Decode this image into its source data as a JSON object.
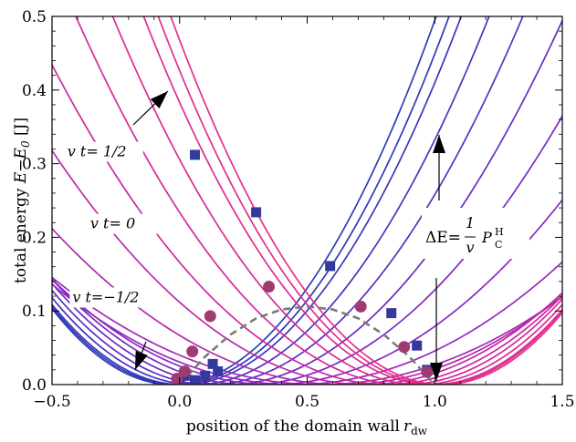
{
  "chart_data": {
    "type": "line",
    "xlabel": "position of the domain wall",
    "xlabel_sub": "dw",
    "xlabel_var": "r",
    "ylabel_main": "total energy ",
    "ylabel_expr": "E−E",
    "ylabel_sub": "0",
    "ylabel_unit": " [J]",
    "xlim": [
      -0.5,
      1.5
    ],
    "ylim": [
      0.0,
      0.5
    ],
    "x_ticks": [
      -0.5,
      0.0,
      0.5,
      1.0,
      1.5
    ],
    "x_tick_labels": [
      "−0.5",
      "0.0",
      "0.5",
      "1.0",
      "1.5"
    ],
    "y_ticks": [
      0.0,
      0.1,
      0.2,
      0.3,
      0.4,
      0.5
    ],
    "y_tick_labels": [
      "0.0",
      "0.1",
      "0.2",
      "0.3",
      "0.4",
      "0.5"
    ],
    "grid": false,
    "curve_model": "E(x) = (cosh(2(x - 0.5)) - a)/(1 - a), a varies with vt",
    "curves": [
      {
        "x0": -0.03,
        "k": 0.466,
        "color": "#2b3fb5"
      },
      {
        "x0": -0.01,
        "k": 0.44,
        "color": "#2f39b8"
      },
      {
        "x0": 0.01,
        "k": 0.418,
        "color": "#3a35bc"
      },
      {
        "x0": 0.06,
        "k": 0.376,
        "color": "#4a31c0"
      },
      {
        "x0": 0.12,
        "k": 0.333,
        "color": "#5a2ec3"
      },
      {
        "x0": 0.19,
        "k": 0.288,
        "color": "#6a2cc4"
      },
      {
        "x0": 0.27,
        "k": 0.241,
        "color": "#7a2bc4"
      },
      {
        "x0": 0.36,
        "k": 0.193,
        "color": "#8a2ac2"
      },
      {
        "x0": 0.45,
        "k": 0.151,
        "color": "#9829bd"
      },
      {
        "x0": 0.55,
        "k": 0.132,
        "color": "#a628b5"
      },
      {
        "x0": 0.64,
        "k": 0.163,
        "color": "#b328ad"
      },
      {
        "x0": 0.73,
        "k": 0.21,
        "color": "#c128a5"
      },
      {
        "x0": 0.81,
        "k": 0.253,
        "color": "#cb299e"
      },
      {
        "x0": 0.88,
        "k": 0.302,
        "color": "#d42a98"
      },
      {
        "x0": 0.94,
        "k": 0.346,
        "color": "#db2b93"
      },
      {
        "x0": 0.99,
        "k": 0.391,
        "color": "#e02c90"
      },
      {
        "x0": 1.01,
        "k": 0.418,
        "color": "#e22d8f"
      },
      {
        "x0": 1.03,
        "k": 0.441,
        "color": "#e42e8e"
      }
    ],
    "dashed_curve": {
      "color": "#7a7a7a",
      "x": [
        0.0,
        0.1,
        0.2,
        0.3,
        0.4,
        0.5,
        0.6,
        0.7,
        0.8,
        0.9,
        1.0
      ],
      "y": [
        0.0,
        0.038,
        0.068,
        0.09,
        0.102,
        0.106,
        0.102,
        0.09,
        0.068,
        0.038,
        0.0
      ]
    },
    "squares": {
      "color": "#35399c",
      "points": [
        [
          0.0,
          0.008
        ],
        [
          0.02,
          0.012
        ],
        [
          0.06,
          0.006
        ],
        [
          0.1,
          0.012
        ],
        [
          0.13,
          0.028
        ],
        [
          0.15,
          0.018
        ],
        [
          0.06,
          0.312
        ],
        [
          0.3,
          0.234
        ],
        [
          0.59,
          0.161
        ],
        [
          0.83,
          0.097
        ],
        [
          0.93,
          0.053
        ],
        [
          0.97,
          0.02
        ]
      ]
    },
    "circles": {
      "color": "#9e3b73",
      "points": [
        [
          -0.01,
          0.008
        ],
        [
          0.02,
          0.018
        ],
        [
          0.05,
          0.045
        ],
        [
          0.12,
          0.093
        ],
        [
          0.35,
          0.133
        ],
        [
          0.71,
          0.106
        ],
        [
          0.88,
          0.051
        ],
        [
          0.97,
          0.017
        ]
      ]
    },
    "annotations": [
      {
        "text": "v t= 1/2",
        "x": -0.44,
        "y": 0.31
      },
      {
        "text": "v t= 0",
        "x": -0.35,
        "y": 0.212
      },
      {
        "text": "v t=−1/2",
        "x": -0.42,
        "y": 0.112
      }
    ],
    "delta_e_label": "ΔE=",
    "delta_e_num": "1",
    "delta_e_den": "v",
    "delta_e_p": "P",
    "delta_e_p_sup": "H",
    "delta_e_p_sub": "C"
  }
}
